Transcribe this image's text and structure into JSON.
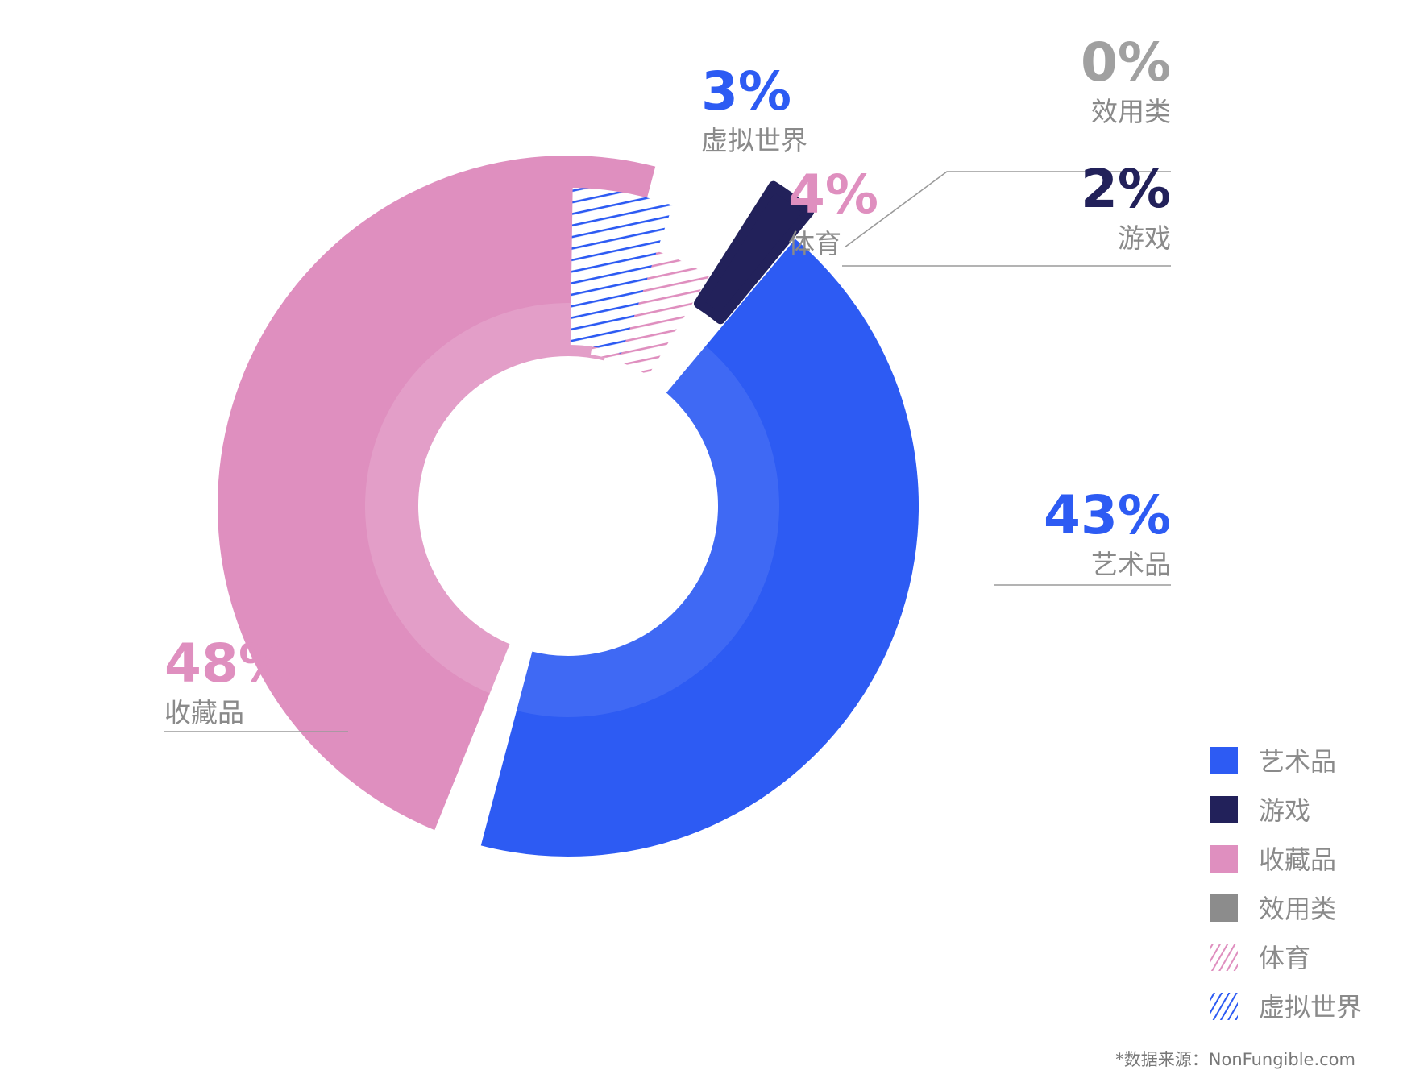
{
  "chart_data": {
    "type": "pie",
    "variant": "donut",
    "title": "",
    "categories": [
      "艺术品",
      "游戏",
      "收藏品",
      "效用类",
      "体育",
      "虚拟世界"
    ],
    "values": [
      43,
      2,
      48,
      0,
      4,
      3
    ],
    "unit": "%",
    "value_labels": [
      "43%",
      "2%",
      "48%",
      "0%",
      "4%",
      "3%"
    ],
    "colors": {
      "艺术品": "#2d5bf3",
      "游戏": "#22215a",
      "收藏品": "#df8fbf",
      "效用类": "#8c8c8c",
      "体育": "#df8fbf",
      "虚拟世界": "#2d5bf3"
    },
    "hatched": [
      "体育",
      "虚拟世界"
    ],
    "legend": {
      "placement": "bottom-right",
      "entries": [
        "艺术品",
        "游戏",
        "收藏品",
        "效用类",
        "体育",
        "虚拟世界"
      ]
    },
    "source_note": "*数据来源：NonFungible.com"
  }
}
